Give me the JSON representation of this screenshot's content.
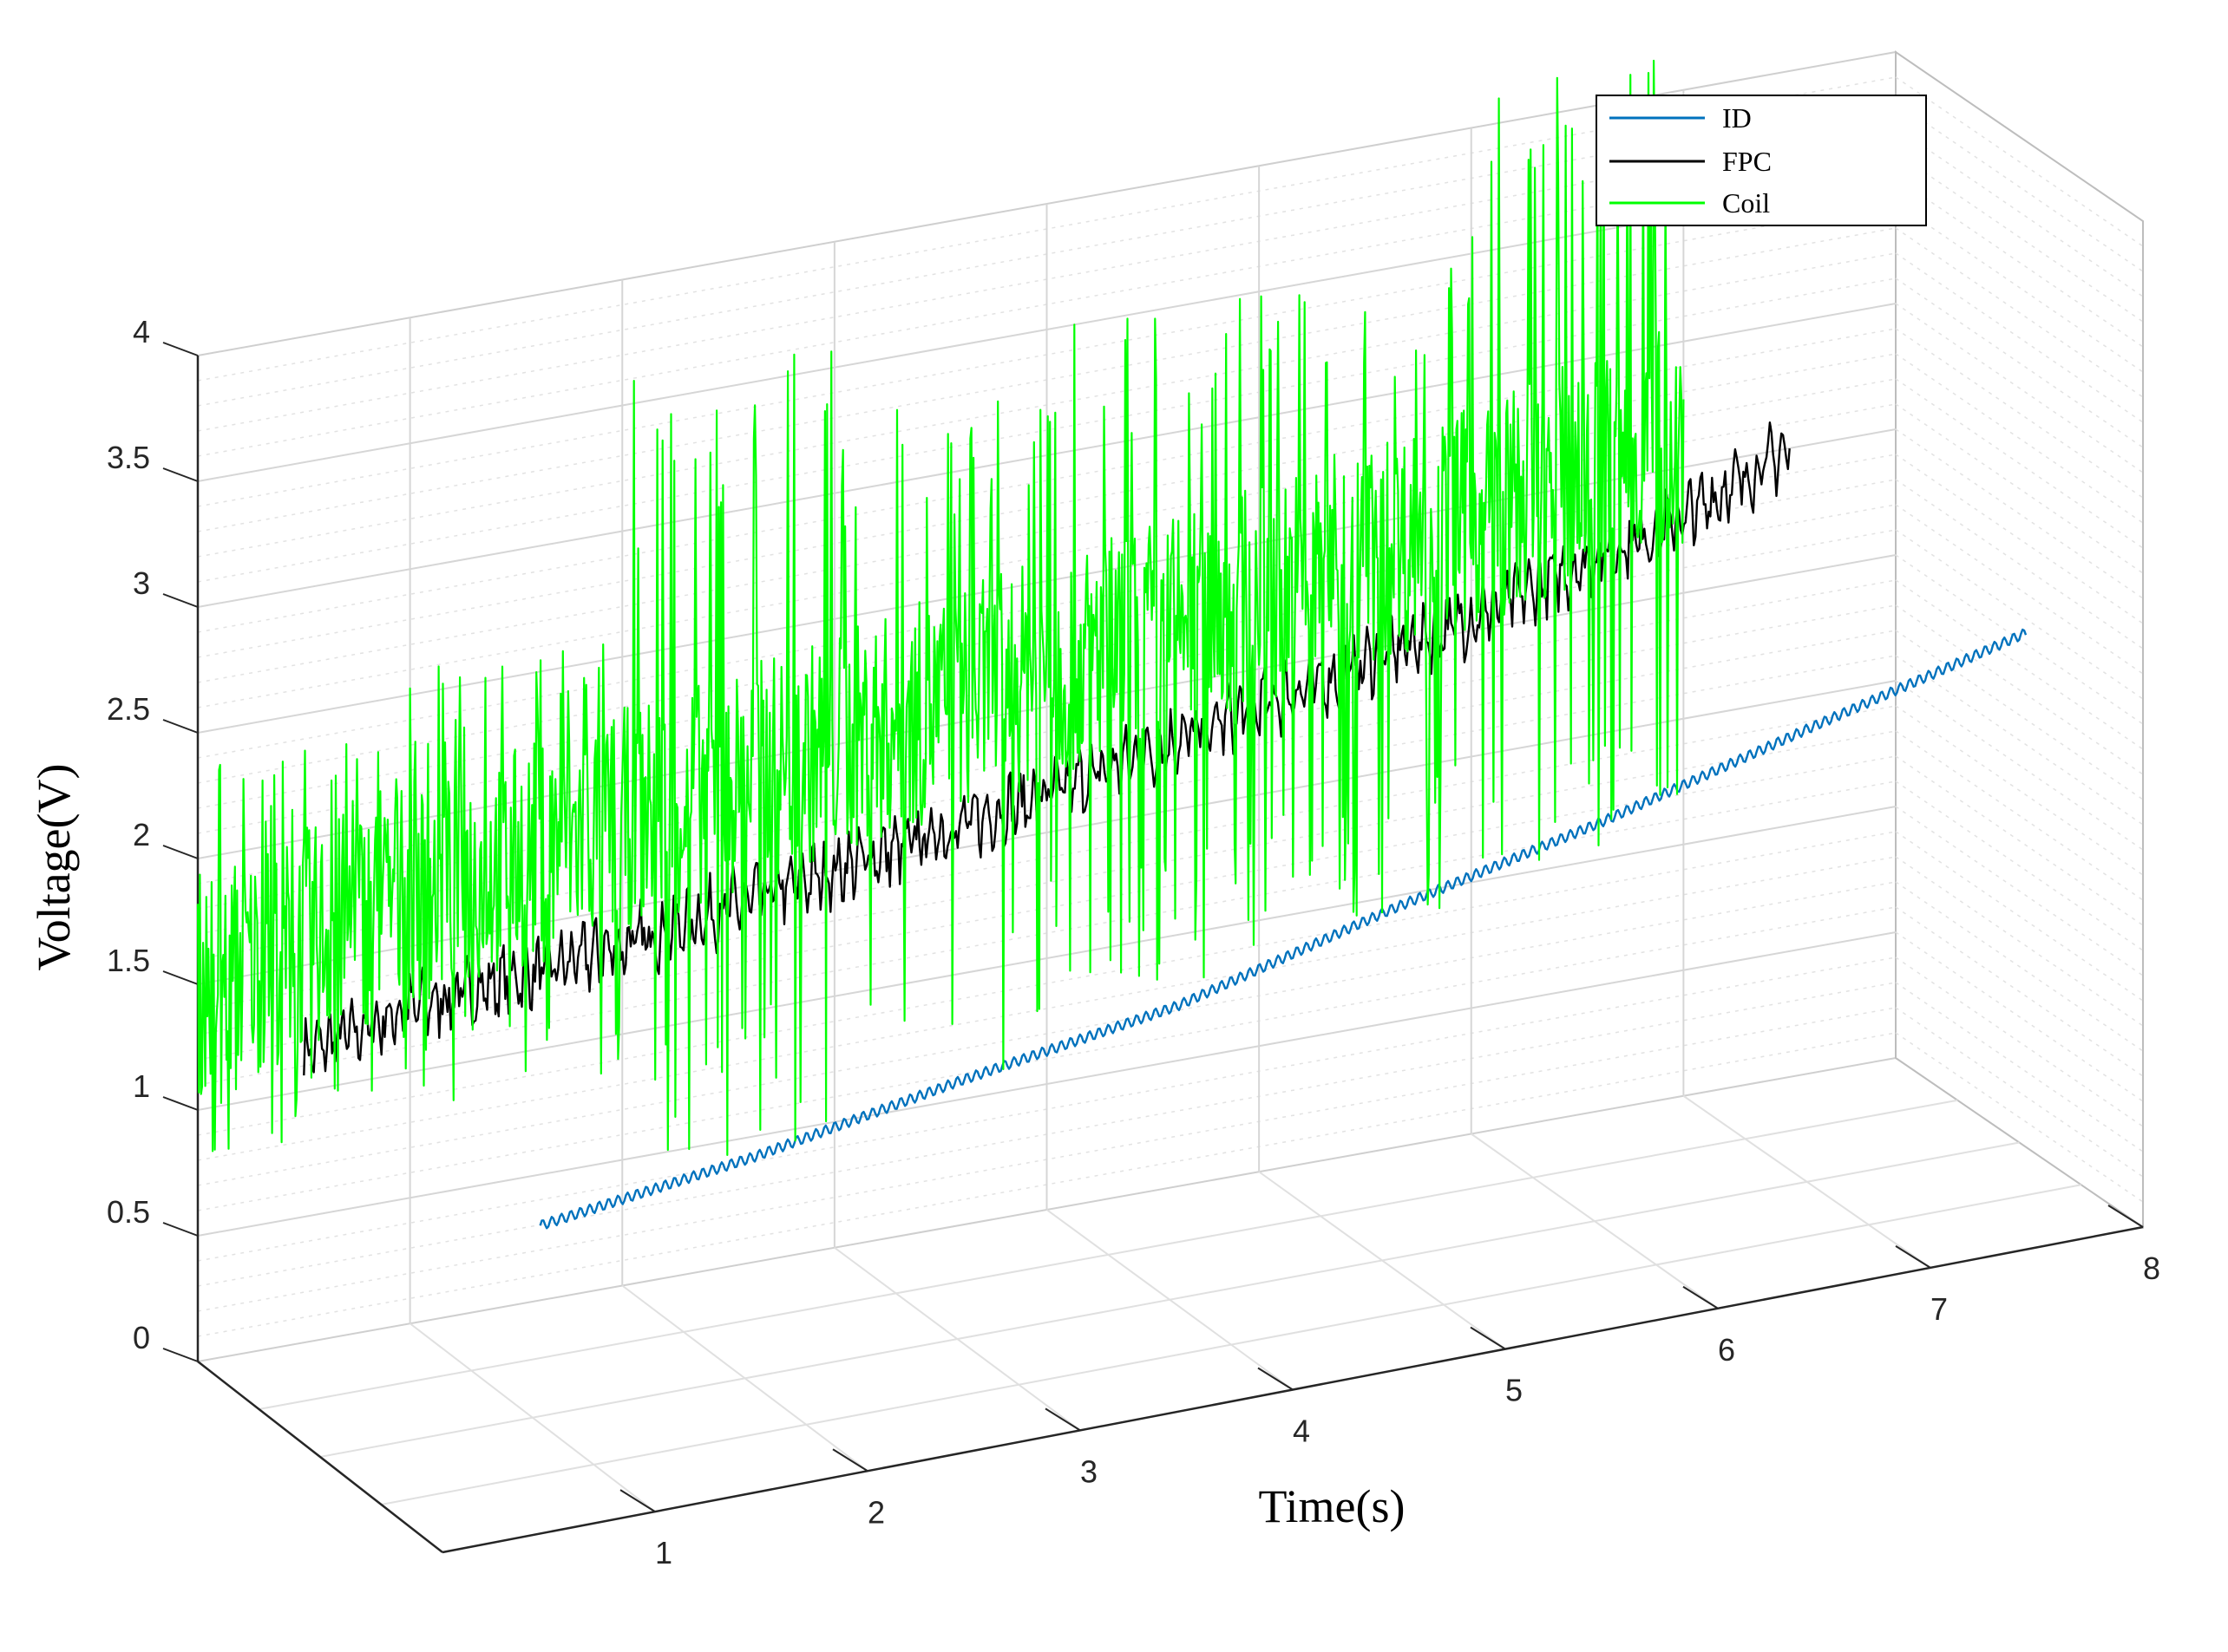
{
  "chart_data": {
    "type": "line",
    "title": "",
    "xlabel": "Time(s)",
    "ylabel": "Voltage(V)",
    "xlim": [
      0,
      8
    ],
    "ylim": [
      0,
      4
    ],
    "x_ticks": [
      "1",
      "2",
      "3",
      "4",
      "5",
      "6",
      "7",
      "8"
    ],
    "y_ticks": [
      "0",
      "0.5",
      "1",
      "1.5",
      "2",
      "2.5",
      "3",
      "3.5",
      "4"
    ],
    "grid": true,
    "legend_position": "top-right",
    "series": [
      {
        "name": "ID",
        "color": "#0072BD",
        "x": [
          1.0,
          2.0,
          3.0,
          4.0,
          5.0,
          6.0,
          7.0,
          8.0
        ],
        "y": [
          0.7,
          0.82,
          0.98,
          1.12,
          1.35,
          1.55,
          1.78,
          2.0
        ],
        "oscillation": 0.02
      },
      {
        "name": "FPC",
        "color": "#000000",
        "x": [
          0.5,
          1.0,
          2.0,
          3.0,
          4.0,
          5.0,
          6.0,
          7.0,
          7.5
        ],
        "y": [
          1.15,
          1.25,
          1.35,
          1.5,
          1.65,
          1.85,
          2.05,
          2.3,
          2.5
        ],
        "oscillation": 0.08
      },
      {
        "name": "Coil",
        "color": "#00FF00",
        "x": [
          0.0,
          1.0,
          2.0,
          3.0,
          4.0,
          5.0,
          6.0,
          7.0
        ],
        "y": [
          1.5,
          1.7,
          1.85,
          2.0,
          2.15,
          2.3,
          2.45,
          2.65
        ],
        "spikes_max": [
          2.4,
          2.6,
          3.6,
          3.3,
          3.5,
          3.5,
          4.2,
          3.7
        ],
        "spikes_min": [
          0.8,
          0.85,
          0.4,
          0.5,
          0.8,
          0.9,
          1.0,
          1.6
        ]
      }
    ]
  }
}
